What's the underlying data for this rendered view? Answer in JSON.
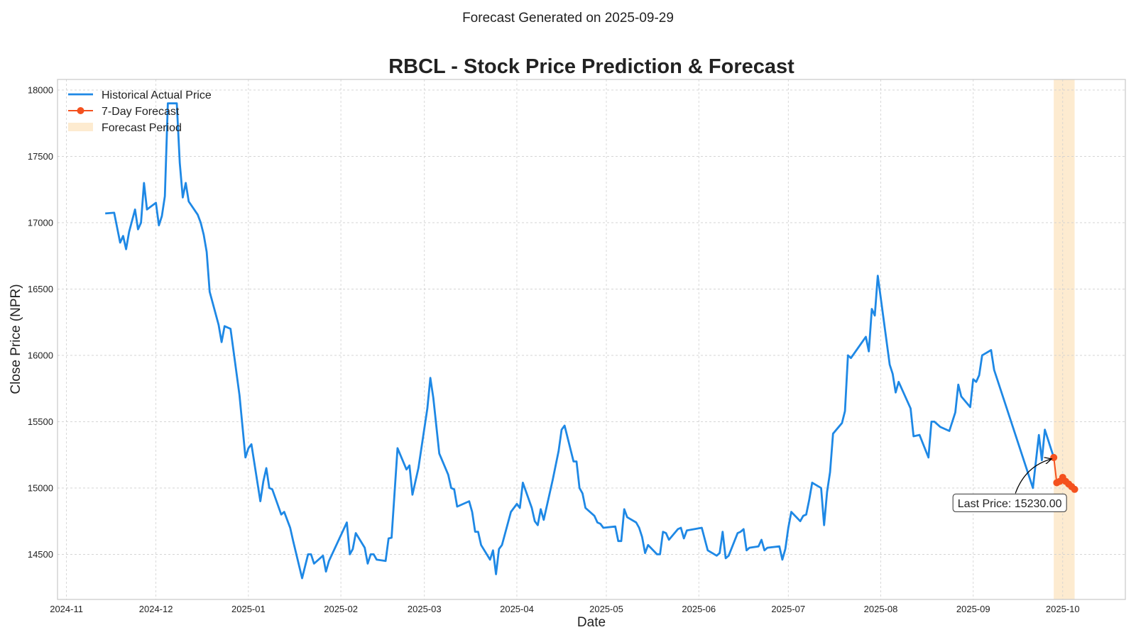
{
  "figure": {
    "suptitle": "Forecast Generated on 2025-09-29"
  },
  "chart_data": {
    "type": "line",
    "title": "RBCL - Stock Price Prediction & Forecast",
    "xlabel": "Date",
    "ylabel": "Close Price (NPR)",
    "xlim": [
      "2024-10-29",
      "2025-10-22"
    ],
    "ylim": [
      14160,
      18080
    ],
    "x_ticks": [
      "2024-11-01",
      "2024-12-01",
      "2025-01-01",
      "2025-02-01",
      "2025-03-01",
      "2025-04-01",
      "2025-05-01",
      "2025-06-01",
      "2025-07-01",
      "2025-08-01",
      "2025-09-01",
      "2025-10-01"
    ],
    "x_tick_labels": [
      "2024-11",
      "2024-12",
      "2025-01",
      "2025-02",
      "2025-03",
      "2025-04",
      "2025-05",
      "2025-06",
      "2025-07",
      "2025-08",
      "2025-09",
      "2025-10"
    ],
    "y_ticks": [
      14500,
      15000,
      15500,
      16000,
      16500,
      17000,
      17500,
      18000
    ],
    "y_tick_labels": [
      "14500",
      "15000",
      "15500",
      "16000",
      "16500",
      "17000",
      "17500",
      "18000"
    ],
    "grid": true,
    "legend_position": "top-left",
    "legend": [
      "Historical Actual Price",
      "7-Day Forecast",
      "Forecast Period"
    ],
    "series": [
      {
        "name": "Historical Actual Price",
        "color": "#1e88e5",
        "points": [
          [
            "2024-11-14",
            17070
          ],
          [
            "2024-11-17",
            17075
          ],
          [
            "2024-11-19",
            16850
          ],
          [
            "2024-11-20",
            16900
          ],
          [
            "2024-11-21",
            16800
          ],
          [
            "2024-11-22",
            16930
          ],
          [
            "2024-11-24",
            17100
          ],
          [
            "2024-11-25",
            16950
          ],
          [
            "2024-11-26",
            17000
          ],
          [
            "2024-11-27",
            17300
          ],
          [
            "2024-11-28",
            17100
          ],
          [
            "2024-12-01",
            17150
          ],
          [
            "2024-12-02",
            16980
          ],
          [
            "2024-12-03",
            17050
          ],
          [
            "2024-12-04",
            17200
          ],
          [
            "2024-12-05",
            17900
          ],
          [
            "2024-12-08",
            17900
          ],
          [
            "2024-12-09",
            17450
          ],
          [
            "2024-12-10",
            17190
          ],
          [
            "2024-12-11",
            17300
          ],
          [
            "2024-12-12",
            17160
          ],
          [
            "2024-12-15",
            17060
          ],
          [
            "2024-12-16",
            17000
          ],
          [
            "2024-12-17",
            16910
          ],
          [
            "2024-12-18",
            16780
          ],
          [
            "2024-12-19",
            16480
          ],
          [
            "2024-12-22",
            16230
          ],
          [
            "2024-12-23",
            16100
          ],
          [
            "2024-12-24",
            16220
          ],
          [
            "2024-12-26",
            16200
          ],
          [
            "2024-12-29",
            15700
          ],
          [
            "2024-12-31",
            15230
          ],
          [
            "2025-01-01",
            15300
          ],
          [
            "2025-01-02",
            15330
          ],
          [
            "2025-01-05",
            14900
          ],
          [
            "2025-01-06",
            15050
          ],
          [
            "2025-01-07",
            15150
          ],
          [
            "2025-01-08",
            15000
          ],
          [
            "2025-01-09",
            14990
          ],
          [
            "2025-01-12",
            14800
          ],
          [
            "2025-01-13",
            14820
          ],
          [
            "2025-01-15",
            14700
          ],
          [
            "2025-01-16",
            14600
          ],
          [
            "2025-01-19",
            14320
          ],
          [
            "2025-01-21",
            14500
          ],
          [
            "2025-01-22",
            14500
          ],
          [
            "2025-01-23",
            14430
          ],
          [
            "2025-01-26",
            14490
          ],
          [
            "2025-01-27",
            14370
          ],
          [
            "2025-01-28",
            14450
          ],
          [
            "2025-02-03",
            14740
          ],
          [
            "2025-02-04",
            14500
          ],
          [
            "2025-02-05",
            14540
          ],
          [
            "2025-02-06",
            14660
          ],
          [
            "2025-02-09",
            14550
          ],
          [
            "2025-02-10",
            14430
          ],
          [
            "2025-02-11",
            14500
          ],
          [
            "2025-02-12",
            14500
          ],
          [
            "2025-02-13",
            14460
          ],
          [
            "2025-02-16",
            14450
          ],
          [
            "2025-02-17",
            14620
          ],
          [
            "2025-02-18",
            14625
          ],
          [
            "2025-02-20",
            15300
          ],
          [
            "2025-02-23",
            15140
          ],
          [
            "2025-02-24",
            15170
          ],
          [
            "2025-02-25",
            14950
          ],
          [
            "2025-02-27",
            15150
          ],
          [
            "2025-03-02",
            15600
          ],
          [
            "2025-03-03",
            15830
          ],
          [
            "2025-03-04",
            15680
          ],
          [
            "2025-03-06",
            15260
          ],
          [
            "2025-03-09",
            15100
          ],
          [
            "2025-03-10",
            15000
          ],
          [
            "2025-03-11",
            14990
          ],
          [
            "2025-03-12",
            14860
          ],
          [
            "2025-03-16",
            14900
          ],
          [
            "2025-03-17",
            14820
          ],
          [
            "2025-03-18",
            14670
          ],
          [
            "2025-03-19",
            14670
          ],
          [
            "2025-03-20",
            14570
          ],
          [
            "2025-03-23",
            14460
          ],
          [
            "2025-03-24",
            14530
          ],
          [
            "2025-03-25",
            14350
          ],
          [
            "2025-03-26",
            14540
          ],
          [
            "2025-03-27",
            14570
          ],
          [
            "2025-03-30",
            14820
          ],
          [
            "2025-04-01",
            14880
          ],
          [
            "2025-04-02",
            14850
          ],
          [
            "2025-04-03",
            15040
          ],
          [
            "2025-04-06",
            14850
          ],
          [
            "2025-04-07",
            14750
          ],
          [
            "2025-04-08",
            14720
          ],
          [
            "2025-04-09",
            14840
          ],
          [
            "2025-04-10",
            14760
          ],
          [
            "2025-04-13",
            15060
          ],
          [
            "2025-04-15",
            15280
          ],
          [
            "2025-04-16",
            15440
          ],
          [
            "2025-04-17",
            15470
          ],
          [
            "2025-04-20",
            15200
          ],
          [
            "2025-04-21",
            15200
          ],
          [
            "2025-04-22",
            15000
          ],
          [
            "2025-04-23",
            14960
          ],
          [
            "2025-04-24",
            14850
          ],
          [
            "2025-04-27",
            14790
          ],
          [
            "2025-04-28",
            14740
          ],
          [
            "2025-04-29",
            14730
          ],
          [
            "2025-04-30",
            14700
          ],
          [
            "2025-05-04",
            14710
          ],
          [
            "2025-05-05",
            14600
          ],
          [
            "2025-05-06",
            14600
          ],
          [
            "2025-05-07",
            14840
          ],
          [
            "2025-05-08",
            14780
          ],
          [
            "2025-05-11",
            14740
          ],
          [
            "2025-05-12",
            14700
          ],
          [
            "2025-05-13",
            14630
          ],
          [
            "2025-05-14",
            14510
          ],
          [
            "2025-05-15",
            14570
          ],
          [
            "2025-05-18",
            14500
          ],
          [
            "2025-05-19",
            14500
          ],
          [
            "2025-05-20",
            14670
          ],
          [
            "2025-05-21",
            14660
          ],
          [
            "2025-05-22",
            14610
          ],
          [
            "2025-05-25",
            14690
          ],
          [
            "2025-05-26",
            14700
          ],
          [
            "2025-05-27",
            14620
          ],
          [
            "2025-05-28",
            14680
          ],
          [
            "2025-06-02",
            14700
          ],
          [
            "2025-06-04",
            14530
          ],
          [
            "2025-06-07",
            14490
          ],
          [
            "2025-06-08",
            14510
          ],
          [
            "2025-06-09",
            14670
          ],
          [
            "2025-06-10",
            14470
          ],
          [
            "2025-06-11",
            14490
          ],
          [
            "2025-06-14",
            14660
          ],
          [
            "2025-06-15",
            14670
          ],
          [
            "2025-06-16",
            14690
          ],
          [
            "2025-06-17",
            14530
          ],
          [
            "2025-06-18",
            14550
          ],
          [
            "2025-06-21",
            14560
          ],
          [
            "2025-06-22",
            14610
          ],
          [
            "2025-06-23",
            14530
          ],
          [
            "2025-06-24",
            14550
          ],
          [
            "2025-06-28",
            14560
          ],
          [
            "2025-06-29",
            14460
          ],
          [
            "2025-06-30",
            14540
          ],
          [
            "2025-07-01",
            14700
          ],
          [
            "2025-07-02",
            14820
          ],
          [
            "2025-07-05",
            14750
          ],
          [
            "2025-07-06",
            14790
          ],
          [
            "2025-07-07",
            14800
          ],
          [
            "2025-07-08",
            14910
          ],
          [
            "2025-07-09",
            15040
          ],
          [
            "2025-07-12",
            15000
          ],
          [
            "2025-07-13",
            14720
          ],
          [
            "2025-07-14",
            14970
          ],
          [
            "2025-07-15",
            15120
          ],
          [
            "2025-07-16",
            15410
          ],
          [
            "2025-07-19",
            15490
          ],
          [
            "2025-07-20",
            15580
          ],
          [
            "2025-07-21",
            16000
          ],
          [
            "2025-07-22",
            15980
          ],
          [
            "2025-07-27",
            16140
          ],
          [
            "2025-07-28",
            16030
          ],
          [
            "2025-07-29",
            16350
          ],
          [
            "2025-07-30",
            16300
          ],
          [
            "2025-07-31",
            16600
          ],
          [
            "2025-08-04",
            15930
          ],
          [
            "2025-08-05",
            15860
          ],
          [
            "2025-08-06",
            15720
          ],
          [
            "2025-08-07",
            15800
          ],
          [
            "2025-08-11",
            15600
          ],
          [
            "2025-08-12",
            15390
          ],
          [
            "2025-08-14",
            15400
          ],
          [
            "2025-08-17",
            15230
          ],
          [
            "2025-08-18",
            15500
          ],
          [
            "2025-08-19",
            15500
          ],
          [
            "2025-08-21",
            15460
          ],
          [
            "2025-08-24",
            15430
          ],
          [
            "2025-08-26",
            15570
          ],
          [
            "2025-08-27",
            15780
          ],
          [
            "2025-08-28",
            15690
          ],
          [
            "2025-08-31",
            15610
          ],
          [
            "2025-09-01",
            15820
          ],
          [
            "2025-09-02",
            15800
          ],
          [
            "2025-09-03",
            15850
          ],
          [
            "2025-09-04",
            16000
          ],
          [
            "2025-09-07",
            16040
          ],
          [
            "2025-09-08",
            15890
          ],
          [
            "2025-09-21",
            15000
          ],
          [
            "2025-09-23",
            15400
          ],
          [
            "2025-09-24",
            15210
          ],
          [
            "2025-09-25",
            15440
          ],
          [
            "2025-09-28",
            15230
          ]
        ]
      },
      {
        "name": "7-Day Forecast",
        "color": "#f4511e",
        "points": [
          [
            "2025-09-28",
            15230
          ],
          [
            "2025-09-29",
            15040
          ],
          [
            "2025-09-30",
            15050
          ],
          [
            "2025-10-01",
            15080
          ],
          [
            "2025-10-02",
            15050
          ],
          [
            "2025-10-03",
            15030
          ],
          [
            "2025-10-04",
            15010
          ],
          [
            "2025-10-05",
            14990
          ]
        ]
      }
    ],
    "forecast_period": {
      "name": "Forecast Period",
      "start": "2025-09-28",
      "end": "2025-10-05",
      "color": "#fdebd0"
    },
    "annotation": {
      "text": "Last Price: 15230.00",
      "point": [
        "2025-09-28",
        15230
      ]
    }
  }
}
